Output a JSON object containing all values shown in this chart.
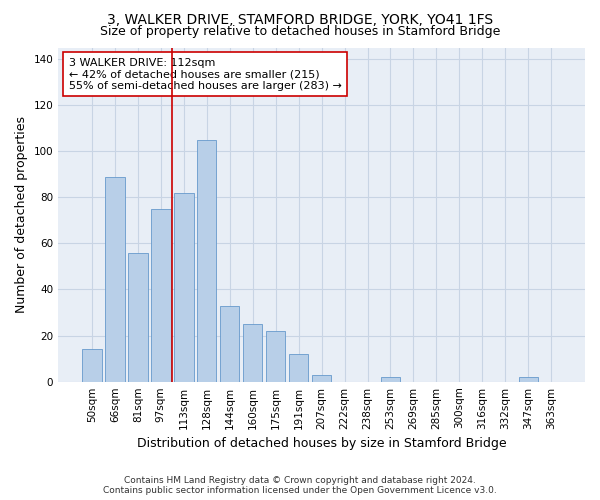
{
  "title1": "3, WALKER DRIVE, STAMFORD BRIDGE, YORK, YO41 1FS",
  "title2": "Size of property relative to detached houses in Stamford Bridge",
  "xlabel": "Distribution of detached houses by size in Stamford Bridge",
  "ylabel": "Number of detached properties",
  "categories": [
    "50sqm",
    "66sqm",
    "81sqm",
    "97sqm",
    "113sqm",
    "128sqm",
    "144sqm",
    "160sqm",
    "175sqm",
    "191sqm",
    "207sqm",
    "222sqm",
    "238sqm",
    "253sqm",
    "269sqm",
    "285sqm",
    "300sqm",
    "316sqm",
    "332sqm",
    "347sqm",
    "363sqm"
  ],
  "values": [
    14,
    89,
    56,
    75,
    82,
    105,
    33,
    25,
    22,
    12,
    3,
    0,
    0,
    2,
    0,
    0,
    0,
    0,
    0,
    2,
    0
  ],
  "bar_color": "#b8cfe8",
  "bar_edge_color": "#6699cc",
  "grid_color": "#c8d4e4",
  "bg_color": "#e8eef6",
  "vline_x_index": 4,
  "vline_color": "#cc0000",
  "annotation_line1": "3 WALKER DRIVE: 112sqm",
  "annotation_line2": "← 42% of detached houses are smaller (215)",
  "annotation_line3": "55% of semi-detached houses are larger (283) →",
  "annotation_box_color": "#ffffff",
  "annotation_box_edge_color": "#cc0000",
  "ylim": [
    0,
    145
  ],
  "yticks": [
    0,
    20,
    40,
    60,
    80,
    100,
    120,
    140
  ],
  "footer_line1": "Contains HM Land Registry data © Crown copyright and database right 2024.",
  "footer_line2": "Contains public sector information licensed under the Open Government Licence v3.0.",
  "title1_fontsize": 10,
  "title2_fontsize": 9,
  "xlabel_fontsize": 9,
  "ylabel_fontsize": 9,
  "tick_fontsize": 7.5,
  "annotation_fontsize": 8,
  "footer_fontsize": 6.5
}
